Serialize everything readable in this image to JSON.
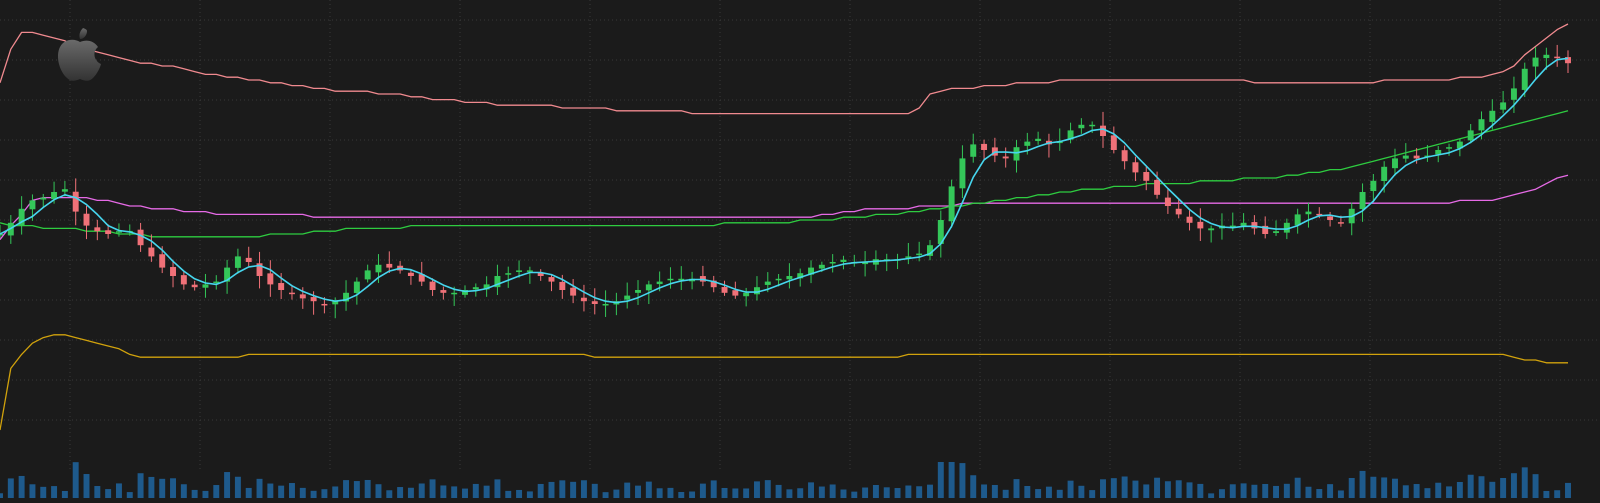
{
  "chart_data": {
    "type": "candlestick",
    "title": "",
    "xlabel": "",
    "ylabel": "",
    "ylim": [
      0,
      100
    ],
    "grid": true,
    "legend": "none",
    "brand_icon": "apple-logo-icon",
    "colors": {
      "background": "#1b1b1b",
      "grid": "#3a3a3a",
      "candle_up": "#34c759",
      "candle_down": "#f07178",
      "ma_fast": "#46d6ee",
      "vwap_upper": "#f08a8f",
      "vwap_mid": "#2ecc40",
      "band_magenta": "#e66ae6",
      "vwap_lower": "#d1a20c",
      "volume": "#1e5a8c"
    },
    "close": [
      70,
      74,
      79,
      82,
      83,
      85,
      86,
      78,
      73,
      71,
      70,
      71,
      71,
      66,
      62,
      58,
      55,
      52,
      51,
      52,
      53,
      58,
      62,
      60,
      55,
      52,
      50,
      49,
      47,
      46,
      45,
      46,
      49,
      53,
      57,
      59,
      58,
      57,
      55,
      53,
      50,
      49,
      49,
      50,
      51,
      52,
      55,
      56,
      57,
      57,
      55,
      53,
      50,
      48,
      46,
      45,
      45,
      46,
      48,
      50,
      52,
      53,
      54,
      54,
      54,
      53,
      51,
      49,
      48,
      49,
      51,
      53,
      54,
      55,
      56,
      58,
      59,
      60,
      60,
      60,
      60,
      61,
      61,
      61,
      62,
      63,
      66,
      75,
      87,
      97,
      102,
      100,
      98,
      97,
      101,
      103,
      104,
      102,
      103,
      107,
      109,
      109,
      105,
      100,
      96,
      92,
      89,
      84,
      80,
      77,
      74,
      72,
      72,
      72,
      73,
      74,
      72,
      70,
      71,
      74,
      77,
      78,
      77,
      75,
      74,
      79,
      85,
      89,
      94,
      97,
      98,
      97,
      98,
      100,
      101,
      103,
      107,
      111,
      114,
      117,
      122,
      129,
      133,
      134,
      133,
      131
    ],
    "upper_band": [
      124,
      136,
      142,
      142,
      141,
      140,
      139,
      137,
      136,
      135,
      134,
      133,
      132,
      131,
      131,
      130,
      130,
      129,
      128,
      127,
      127,
      126,
      126,
      125,
      125,
      124,
      124,
      123,
      123,
      122,
      122,
      121,
      121,
      121,
      121,
      120,
      120,
      120,
      119,
      119,
      118,
      118,
      118,
      117,
      117,
      117,
      116,
      116,
      116,
      116,
      116,
      116,
      115,
      115,
      115,
      115,
      115,
      114,
      114,
      114,
      114,
      114,
      114,
      114,
      113,
      113,
      113,
      113,
      113,
      113,
      113,
      113,
      113,
      113,
      113,
      113,
      113,
      113,
      113,
      113,
      113,
      113,
      113,
      113,
      113,
      115,
      120,
      121,
      122,
      122,
      122,
      123,
      123,
      123,
      124,
      124,
      124,
      124,
      125,
      125,
      125,
      125,
      125,
      125,
      125,
      125,
      125,
      125,
      125,
      125,
      125,
      125,
      125,
      125,
      125,
      125,
      124,
      124,
      124,
      124,
      124,
      124,
      124,
      124,
      124,
      124,
      124,
      124,
      125,
      125,
      125,
      125,
      125,
      125,
      125,
      126,
      126,
      126,
      127,
      128,
      130,
      134,
      137,
      140,
      143,
      145
    ],
    "mid_band": [
      74,
      73,
      73,
      73,
      72,
      72,
      72,
      72,
      71,
      71,
      71,
      70,
      70,
      70,
      69,
      69,
      69,
      69,
      69,
      69,
      69,
      69,
      69,
      69,
      69,
      70,
      70,
      70,
      70,
      71,
      71,
      71,
      72,
      72,
      72,
      72,
      72,
      72,
      73,
      73,
      73,
      73,
      73,
      73,
      73,
      73,
      73,
      73,
      73,
      73,
      73,
      73,
      73,
      73,
      73,
      73,
      73,
      73,
      73,
      73,
      73,
      73,
      73,
      73,
      73,
      73,
      73,
      74,
      74,
      74,
      74,
      74,
      74,
      74,
      75,
      75,
      75,
      75,
      76,
      76,
      76,
      77,
      77,
      77,
      78,
      78,
      79,
      79,
      80,
      80,
      81,
      81,
      82,
      82,
      83,
      83,
      84,
      84,
      85,
      85,
      86,
      86,
      86,
      87,
      87,
      87,
      88,
      88,
      88,
      88,
      88,
      89,
      89,
      89,
      89,
      90,
      90,
      90,
      90,
      91,
      91,
      92,
      92,
      93,
      93,
      94,
      95,
      96,
      97,
      98,
      99,
      100,
      101,
      102,
      103,
      104,
      105,
      106,
      107,
      108,
      109,
      110,
      111,
      112,
      113,
      114
    ],
    "magenta_band": [
      68,
      73,
      77,
      82,
      83,
      83,
      83,
      83,
      83,
      82,
      82,
      81,
      80,
      80,
      79,
      79,
      79,
      78,
      78,
      78,
      77,
      77,
      77,
      77,
      77,
      77,
      77,
      77,
      77,
      76,
      76,
      76,
      76,
      76,
      76,
      76,
      76,
      76,
      76,
      76,
      76,
      76,
      76,
      76,
      76,
      76,
      76,
      76,
      76,
      76,
      76,
      76,
      76,
      76,
      76,
      76,
      76,
      76,
      76,
      76,
      76,
      76,
      76,
      76,
      76,
      76,
      76,
      76,
      76,
      76,
      76,
      76,
      76,
      76,
      76,
      76,
      77,
      77,
      78,
      78,
      79,
      79,
      79,
      79,
      79,
      80,
      80,
      80,
      80,
      81,
      81,
      81,
      81,
      81,
      81,
      81,
      81,
      81,
      81,
      81,
      81,
      81,
      81,
      81,
      81,
      81,
      81,
      81,
      81,
      81,
      81,
      81,
      81,
      81,
      81,
      81,
      81,
      81,
      81,
      81,
      81,
      81,
      81,
      81,
      81,
      81,
      81,
      81,
      81,
      81,
      81,
      81,
      81,
      81,
      81,
      82,
      82,
      82,
      82,
      83,
      84,
      85,
      86,
      88,
      90,
      91
    ],
    "lower_band": [
      0,
      22,
      27,
      31,
      33,
      34,
      34,
      33,
      32,
      31,
      30,
      29,
      27,
      26,
      26,
      26,
      26,
      26,
      26,
      26,
      26,
      26,
      26,
      27,
      27,
      27,
      27,
      27,
      27,
      27,
      27,
      27,
      27,
      27,
      27,
      27,
      27,
      27,
      27,
      27,
      27,
      27,
      27,
      27,
      27,
      27,
      27,
      27,
      27,
      27,
      27,
      27,
      27,
      27,
      27,
      26,
      26,
      26,
      26,
      26,
      26,
      26,
      26,
      26,
      26,
      26,
      26,
      26,
      26,
      26,
      26,
      26,
      26,
      26,
      26,
      26,
      26,
      26,
      26,
      26,
      26,
      26,
      26,
      26,
      27,
      27,
      27,
      27,
      27,
      27,
      27,
      27,
      27,
      27,
      27,
      27,
      27,
      27,
      27,
      27,
      27,
      27,
      27,
      27,
      27,
      27,
      27,
      27,
      27,
      27,
      27,
      27,
      27,
      27,
      27,
      27,
      27,
      27,
      27,
      27,
      27,
      27,
      27,
      27,
      27,
      27,
      27,
      27,
      27,
      27,
      27,
      27,
      27,
      27,
      27,
      27,
      27,
      27,
      27,
      27,
      26,
      25,
      25,
      24,
      24,
      24
    ]
  }
}
